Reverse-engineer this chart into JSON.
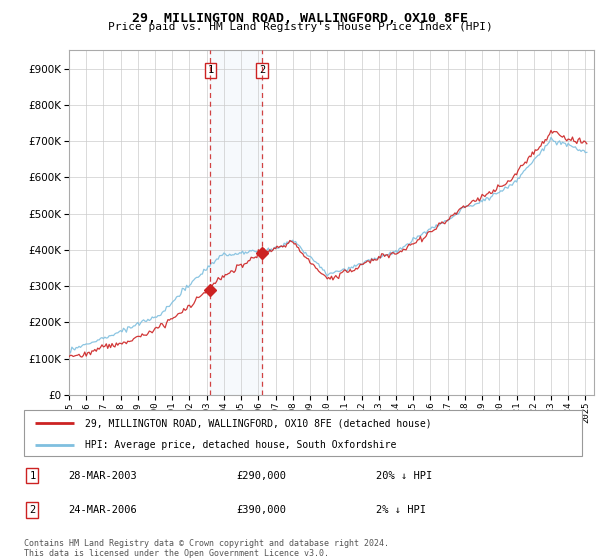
{
  "title": "29, MILLINGTON ROAD, WALLINGFORD, OX10 8FE",
  "subtitle": "Price paid vs. HM Land Registry's House Price Index (HPI)",
  "legend_line1": "29, MILLINGTON ROAD, WALLINGFORD, OX10 8FE (detached house)",
  "legend_line2": "HPI: Average price, detached house, South Oxfordshire",
  "sale1_date": "28-MAR-2003",
  "sale1_price": "£290,000",
  "sale1_hpi": "20% ↓ HPI",
  "sale1_year": 2003.22,
  "sale1_value": 290000,
  "sale2_date": "24-MAR-2006",
  "sale2_price": "£390,000",
  "sale2_hpi": "2% ↓ HPI",
  "sale2_year": 2006.22,
  "sale2_value": 390000,
  "hpi_color": "#7fbfdf",
  "price_color": "#cc2222",
  "sale_dot_color": "#cc2222",
  "vline_color": "#cc2222",
  "footer": "Contains HM Land Registry data © Crown copyright and database right 2024.\nThis data is licensed under the Open Government Licence v3.0.",
  "ylim": [
    0,
    950000
  ],
  "yticks": [
    0,
    100000,
    200000,
    300000,
    400000,
    500000,
    600000,
    700000,
    800000,
    900000
  ],
  "background": "#ffffff",
  "grid_color": "#cccccc"
}
